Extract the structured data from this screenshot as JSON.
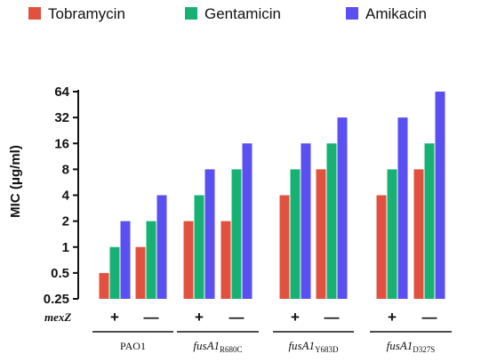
{
  "chart_data": {
    "type": "bar",
    "ylabel": "MIC (μg/ml)",
    "yscale": "log2",
    "ylim": [
      0.25,
      64
    ],
    "yticks": [
      0.25,
      0.5,
      1,
      2,
      4,
      8,
      16,
      32,
      64
    ],
    "ytick_labels": [
      "0.25",
      "0.5",
      "1",
      "2",
      "4",
      "8",
      "16",
      "32",
      "64"
    ],
    "row_label": "mexZ",
    "categories": [
      {
        "mexZ": "+",
        "strain": "PAO1"
      },
      {
        "mexZ": "—",
        "strain": "PAO1"
      },
      {
        "mexZ": "+",
        "strain": "fusA1 R680C"
      },
      {
        "mexZ": "—",
        "strain": "fusA1 R680C"
      },
      {
        "mexZ": "+",
        "strain": "fusA1 Y683D"
      },
      {
        "mexZ": "—",
        "strain": "fusA1 Y683D"
      },
      {
        "mexZ": "+",
        "strain": "fusA1 D327S"
      },
      {
        "mexZ": "—",
        "strain": "fusA1 D327S"
      }
    ],
    "groups": [
      {
        "main": "PAO1",
        "sub": ""
      },
      {
        "main": "fusA1",
        "sub": "R680C"
      },
      {
        "main": "fusA1",
        "sub": "Y683D"
      },
      {
        "main": "fusA1",
        "sub": "D327S"
      }
    ],
    "series": [
      {
        "name": "Tobramycin",
        "color": "#e2513f",
        "values": [
          0.5,
          1,
          2,
          2,
          4,
          8,
          4,
          8
        ]
      },
      {
        "name": "Gentamicin",
        "color": "#17b273",
        "values": [
          1,
          2,
          4,
          8,
          8,
          16,
          8,
          16
        ]
      },
      {
        "name": "Amikacin",
        "color": "#5a4ff0",
        "values": [
          2,
          4,
          8,
          16,
          16,
          32,
          32,
          64
        ]
      }
    ],
    "legend_position": "top",
    "grid": false
  }
}
